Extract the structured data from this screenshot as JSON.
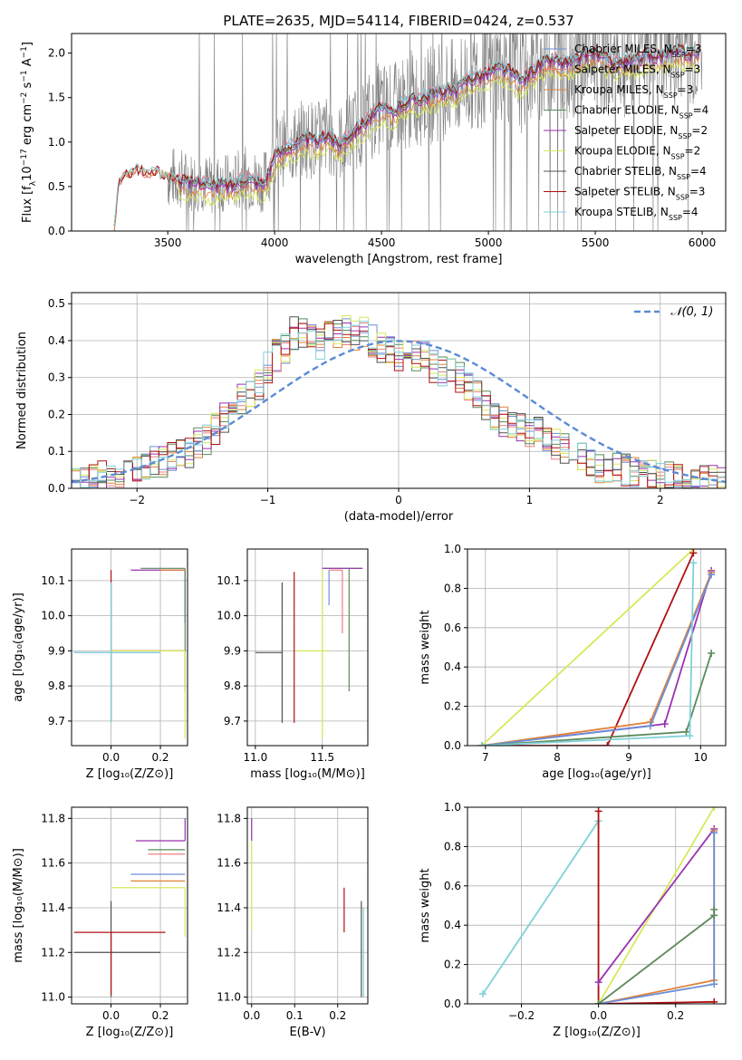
{
  "figure": {
    "title": "PLATE=2635, MJD=54114, FIBERID=0424, z=0.537"
  },
  "colors": {
    "chabrier_miles": "#6b8fd6",
    "salpeter_miles": "#ef7f80",
    "kroupa_miles": "#e0823a",
    "chabrier_elodie": "#5a8a5a",
    "salpeter_elodie": "#9b30b0",
    "kroupa_elodie": "#d8e85a",
    "chabrier_stelib": "#505050",
    "salpeter_stelib": "#b01010",
    "kroupa_stelib": "#7fd0d8",
    "normal_curve": "#5b8bd6",
    "data_spectrum": "#808080",
    "grid": "#b0b0b0"
  },
  "chart_data": [
    {
      "id": "spectrum",
      "type": "line",
      "title": "PLATE=2635, MJD=54114, FIBERID=0424, z=0.537",
      "xlabel": "wavelength [Angstrom, rest frame]",
      "ylabel_parts": {
        "a": "Flux [f",
        "b": "λ",
        "c": "10",
        "d": "−17",
        "e": " erg cm",
        "f": "−2",
        "g": " s",
        "h": "−1",
        "i": " A",
        "j": "−1",
        "k": "]"
      },
      "xlim": [
        3050,
        6110
      ],
      "ylim": [
        0,
        2.22
      ],
      "xticks": [
        3500,
        4000,
        4500,
        5000,
        5500,
        6000
      ],
      "yticks": [
        0.0,
        0.5,
        1.0,
        1.5,
        2.0
      ],
      "grid": false,
      "legend_position": "top-right",
      "legend": [
        {
          "label": "Chabrier MILES, N",
          "sub": "SSP",
          "tail": "=3",
          "color_key": "chabrier_miles"
        },
        {
          "label": "Salpeter MILES, N",
          "sub": "SSP",
          "tail": "=3",
          "color_key": "salpeter_miles"
        },
        {
          "label": "Kroupa MILES, N",
          "sub": "SSP",
          "tail": "=3",
          "color_key": "kroupa_miles"
        },
        {
          "label": "Chabrier ELODIE, N",
          "sub": "SSP",
          "tail": "=4",
          "color_key": "chabrier_elodie"
        },
        {
          "label": "Salpeter ELODIE, N",
          "sub": "SSP",
          "tail": "=2",
          "color_key": "salpeter_elodie"
        },
        {
          "label": "Kroupa ELODIE, N",
          "sub": "SSP",
          "tail": "=2",
          "color_key": "kroupa_elodie"
        },
        {
          "label": "Chabrier STELIB, N",
          "sub": "SSP",
          "tail": "=4",
          "color_key": "chabrier_stelib"
        },
        {
          "label": "Salpeter STELIB, N",
          "sub": "SSP",
          "tail": "=3",
          "color_key": "salpeter_stelib"
        },
        {
          "label": "Kroupa STELIB, N",
          "sub": "SSP",
          "tail": "=4",
          "color_key": "kroupa_stelib"
        }
      ],
      "model_continuum": {
        "x": [
          3250,
          3270,
          3300,
          3350,
          3400,
          3450,
          3500,
          3550,
          3600,
          3650,
          3700,
          3750,
          3800,
          3850,
          3900,
          3950,
          4000,
          4050,
          4100,
          4150,
          4200,
          4250,
          4300,
          4350,
          4400,
          4450,
          4500,
          4550,
          4600,
          4650,
          4700,
          4750,
          4800,
          4850,
          4900,
          4950,
          5000,
          5050,
          5100,
          5150,
          5200,
          5250,
          5300,
          5350,
          5400,
          5450,
          5500,
          5550,
          5600,
          5650,
          5700,
          5750,
          5800,
          5850,
          5900,
          5950,
          5990
        ],
        "y": [
          0.0,
          0.55,
          0.62,
          0.7,
          0.65,
          0.67,
          0.6,
          0.6,
          0.55,
          0.58,
          0.5,
          0.55,
          0.52,
          0.6,
          0.58,
          0.55,
          0.85,
          0.95,
          1.0,
          1.05,
          1.02,
          1.1,
          0.98,
          1.1,
          1.2,
          1.3,
          1.4,
          1.35,
          1.45,
          1.5,
          1.52,
          1.55,
          1.6,
          1.58,
          1.72,
          1.75,
          1.8,
          1.85,
          1.82,
          1.7,
          1.8,
          1.9,
          1.95,
          1.9,
          1.92,
          2.0,
          2.02,
          1.95,
          1.9,
          1.92,
          1.95,
          2.0,
          1.98,
          2.02,
          2.05,
          2.0,
          2.05
        ],
        "series_offsets": {
          "chabrier_miles": 0.0,
          "salpeter_miles": 0.02,
          "kroupa_miles": -0.12,
          "chabrier_elodie": -0.02,
          "salpeter_elodie": -0.05,
          "kroupa_elodie": -0.18,
          "chabrier_stelib": 0.01,
          "salpeter_stelib": 0.0,
          "kroupa_stelib": 0.02
        }
      },
      "data_noise": {
        "x_start": 3500,
        "x_end": 6000,
        "amplitude": 0.45
      }
    },
    {
      "id": "residuals",
      "type": "line",
      "xlabel": "(data-model)/error",
      "ylabel": "Normed distribution",
      "xlim": [
        -2.5,
        2.5
      ],
      "ylim": [
        0,
        0.53
      ],
      "xticks": [
        -2,
        -1,
        0,
        1,
        2
      ],
      "xtick_labels": [
        "−2",
        "−1",
        "0",
        "1",
        "2"
      ],
      "yticks": [
        0.0,
        0.1,
        0.2,
        0.3,
        0.4,
        0.5
      ],
      "grid": true,
      "legend_position": "top-right",
      "legend": [
        {
          "label": "𝒩(0, 1)",
          "style": "dashed",
          "color_key": "normal_curve"
        }
      ],
      "bin_edges_start": -2.5,
      "bin_width": 0.1,
      "hist_base": [
        0.02,
        0.02,
        0.03,
        0.03,
        0.03,
        0.04,
        0.05,
        0.05,
        0.06,
        0.07,
        0.07,
        0.08,
        0.09,
        0.1,
        0.12,
        0.13,
        0.16,
        0.19,
        0.21,
        0.24,
        0.26,
        0.28,
        0.33,
        0.36,
        0.38,
        0.42,
        0.42,
        0.4,
        0.39,
        0.41,
        0.42,
        0.43,
        0.41,
        0.42,
        0.4,
        0.38,
        0.37,
        0.36,
        0.38,
        0.36,
        0.36,
        0.33,
        0.32,
        0.33,
        0.3,
        0.27,
        0.26,
        0.23,
        0.2,
        0.18,
        0.18,
        0.17,
        0.15,
        0.15,
        0.14,
        0.12,
        0.11,
        0.1,
        0.09,
        0.07,
        0.06,
        0.06,
        0.06,
        0.05,
        0.04,
        0.04,
        0.04,
        0.03,
        0.03,
        0.03,
        0.03,
        0.02,
        0.02,
        0.02,
        0.02
      ]
    },
    {
      "id": "age_vs_Z",
      "type": "scatter",
      "xlabel": "Z [log₁₀(Z/Z⊙)]",
      "ylabel": "age  [log₁₀(age/yr)]",
      "xlim": [
        -0.16,
        0.31
      ],
      "ylim": [
        9.63,
        10.19
      ],
      "xticks": [
        0.0,
        0.2
      ],
      "yticks": [
        9.7,
        9.8,
        9.9,
        10.0,
        10.1
      ],
      "grid": true,
      "points": [
        {
          "x": 0.0,
          "y": 9.895,
          "xerr": [
            0.15,
            0.2
          ],
          "yerr": [
            0.2,
            0.2
          ],
          "color_key": "chabrier_miles"
        },
        {
          "x": 0.0,
          "y": 9.9,
          "xerr": [
            0.0,
            0.3
          ],
          "yerr": [
            0.2,
            0.23
          ],
          "color_key": "salpeter_stelib"
        },
        {
          "x": 0.0,
          "y": 9.895,
          "xerr": [
            0.15,
            0.2
          ],
          "yerr": [
            0.2,
            0.2
          ],
          "color_key": "kroupa_stelib"
        },
        {
          "x": 0.3,
          "y": 10.13,
          "xerr": [
            0.22,
            0.0
          ],
          "yerr": [
            0.15,
            0.0
          ],
          "color_key": "salpeter_elodie"
        },
        {
          "x": 0.3,
          "y": 10.135,
          "xerr": [
            0.18,
            0.0
          ],
          "yerr": [
            0.35,
            0.0
          ],
          "color_key": "chabrier_elodie"
        },
        {
          "x": 0.3,
          "y": 10.13,
          "xerr": [
            0.1,
            0.0
          ],
          "yerr": [
            0.0,
            0.0
          ],
          "color_key": "kroupa_miles"
        },
        {
          "x": 0.3,
          "y": 9.9,
          "xerr": [
            0.3,
            0.0
          ],
          "yerr": [
            0.25,
            0.0
          ],
          "color_key": "kroupa_elodie"
        }
      ]
    },
    {
      "id": "age_vs_mass",
      "type": "scatter",
      "xlabel": "mass [log₁₀(M/M⊙)]",
      "xlim": [
        10.94,
        11.84
      ],
      "ylim": [
        9.63,
        10.19
      ],
      "xticks": [
        11.0,
        11.5
      ],
      "yticks": [
        9.7,
        9.8,
        9.9,
        10.0,
        10.1
      ],
      "grid": true,
      "points": [
        {
          "x": 11.2,
          "y": 9.895,
          "xerr": [
            0.2,
            0.0
          ],
          "yerr": [
            0.2,
            0.2
          ],
          "color_key": "chabrier_stelib"
        },
        {
          "x": 11.29,
          "y": 9.895,
          "xerr": [
            0.0,
            0.0
          ],
          "yerr": [
            0.2,
            0.23
          ],
          "color_key": "salpeter_stelib"
        },
        {
          "x": 11.5,
          "y": 9.9,
          "xerr": [
            0.2,
            0.05
          ],
          "yerr": [
            0.25,
            0.23
          ],
          "color_key": "kroupa_elodie"
        },
        {
          "x": 11.7,
          "y": 10.135,
          "xerr": [
            0.2,
            0.1
          ],
          "yerr": [
            0.35,
            0.0
          ],
          "color_key": "chabrier_elodie"
        },
        {
          "x": 11.8,
          "y": 10.135,
          "xerr": [
            0.3,
            0.0
          ],
          "yerr": [
            0.0,
            0.0
          ],
          "color_key": "salpeter_elodie"
        },
        {
          "x": 11.65,
          "y": 10.13,
          "xerr": [
            0.1,
            0.0
          ],
          "yerr": [
            0.18,
            0.0
          ],
          "color_key": "salpeter_miles"
        },
        {
          "x": 11.55,
          "y": 10.13,
          "xerr": [
            0.0,
            0.0
          ],
          "yerr": [
            0.1,
            0.0
          ],
          "color_key": "chabrier_miles"
        }
      ]
    },
    {
      "id": "mass_weight_vs_age",
      "type": "line",
      "xlabel": "age  [log₁₀(age/yr)]",
      "ylabel": "mass weight",
      "xlim": [
        6.75,
        10.35
      ],
      "ylim": [
        0,
        1.0
      ],
      "xticks": [
        7,
        8,
        9,
        10
      ],
      "yticks": [
        0.0,
        0.2,
        0.4,
        0.6,
        0.8,
        1.0
      ],
      "grid": true,
      "series": [
        {
          "color_key": "kroupa_elodie",
          "x": [
            6.95,
            9.9
          ],
          "y": [
            0.0,
            1.0
          ]
        },
        {
          "color_key": "salpeter_stelib",
          "x": [
            6.95,
            8.7,
            9.9
          ],
          "y": [
            0.0,
            0.0,
            0.98
          ]
        },
        {
          "color_key": "salpeter_elodie",
          "x": [
            6.95,
            9.5,
            10.15
          ],
          "y": [
            0.0,
            0.11,
            0.89
          ]
        },
        {
          "color_key": "kroupa_miles",
          "x": [
            6.95,
            9.3,
            10.15
          ],
          "y": [
            0.0,
            0.12,
            0.88
          ]
        },
        {
          "color_key": "chabrier_miles",
          "x": [
            6.95,
            9.3,
            10.15
          ],
          "y": [
            0.0,
            0.1,
            0.87
          ]
        },
        {
          "color_key": "chabrier_elodie",
          "x": [
            6.95,
            9.8,
            10.15
          ],
          "y": [
            0.0,
            0.07,
            0.47
          ]
        },
        {
          "color_key": "kroupa_stelib",
          "x": [
            6.95,
            9.85,
            9.9
          ],
          "y": [
            0.0,
            0.05,
            0.93
          ]
        }
      ]
    },
    {
      "id": "mass_vs_Z",
      "type": "scatter",
      "xlabel": "Z [log₁₀(Z/Z⊙)]",
      "ylabel": "mass [log₁₀(M/M⊙)]",
      "xlim": [
        -0.16,
        0.31
      ],
      "ylim": [
        10.97,
        11.85
      ],
      "xticks": [
        0.0,
        0.2
      ],
      "yticks": [
        11.0,
        11.2,
        11.4,
        11.6,
        11.8
      ],
      "grid": true,
      "points": [
        {
          "x": 0.0,
          "y": 11.2,
          "xerr": [
            0.15,
            0.2
          ],
          "yerr": [
            0.2,
            0.23
          ],
          "color_key": "chabrier_stelib"
        },
        {
          "x": 0.0,
          "y": 11.29,
          "xerr": [
            0.15,
            0.22
          ],
          "yerr": [
            0.28,
            0.0
          ],
          "color_key": "salpeter_stelib"
        },
        {
          "x": 0.3,
          "y": 11.7,
          "xerr": [
            0.2,
            0.0
          ],
          "yerr": [
            0.0,
            0.1
          ],
          "color_key": "salpeter_elodie"
        },
        {
          "x": 0.3,
          "y": 11.66,
          "xerr": [
            0.15,
            0.0
          ],
          "yerr": [
            0.0,
            0.0
          ],
          "color_key": "chabrier_elodie"
        },
        {
          "x": 0.3,
          "y": 11.64,
          "xerr": [
            0.15,
            0.0
          ],
          "yerr": [
            0.0,
            0.0
          ],
          "color_key": "salpeter_miles"
        },
        {
          "x": 0.3,
          "y": 11.55,
          "xerr": [
            0.22,
            0.0
          ],
          "yerr": [
            0.0,
            0.0
          ],
          "color_key": "chabrier_miles"
        },
        {
          "x": 0.3,
          "y": 11.52,
          "xerr": [
            0.22,
            0.0
          ],
          "yerr": [
            0.0,
            0.0
          ],
          "color_key": "kroupa_miles"
        },
        {
          "x": 0.3,
          "y": 11.49,
          "xerr": [
            0.3,
            0.0
          ],
          "yerr": [
            0.22,
            0.0
          ],
          "color_key": "kroupa_elodie"
        }
      ]
    },
    {
      "id": "mass_vs_EBV",
      "type": "scatter",
      "xlabel": "E(B-V)",
      "xlim": [
        -0.01,
        0.27
      ],
      "ylim": [
        10.97,
        11.85
      ],
      "xticks": [
        0.0,
        0.1,
        0.2
      ],
      "yticks": [
        11.0,
        11.2,
        11.4,
        11.6,
        11.8
      ],
      "grid": true,
      "points": [
        {
          "x": 0.0,
          "y": 11.5,
          "xerr": [
            0.0,
            0.0
          ],
          "yerr": [
            0.2,
            0.2
          ],
          "color_key": "kroupa_elodie"
        },
        {
          "x": 0.0,
          "y": 11.7,
          "xerr": [
            0.0,
            0.0
          ],
          "yerr": [
            0.0,
            0.1
          ],
          "color_key": "salpeter_elodie"
        },
        {
          "x": 0.215,
          "y": 11.29,
          "xerr": [
            0.0,
            0.0
          ],
          "yerr": [
            0.0,
            0.2
          ],
          "color_key": "salpeter_stelib"
        },
        {
          "x": 0.255,
          "y": 11.2,
          "xerr": [
            0.0,
            0.0
          ],
          "yerr": [
            0.2,
            0.23
          ],
          "color_key": "chabrier_stelib"
        },
        {
          "x": 0.26,
          "y": 11.2,
          "xerr": [
            0.0,
            0.0
          ],
          "yerr": [
            0.2,
            0.2
          ],
          "color_key": "kroupa_stelib"
        }
      ]
    },
    {
      "id": "mass_weight_vs_Z",
      "type": "line",
      "xlabel": "Z [log₁₀(Z/Z⊙)]",
      "ylabel": "mass weight",
      "xlim": [
        -0.34,
        0.33
      ],
      "ylim": [
        0,
        1.0
      ],
      "xticks": [
        -0.2,
        0.0,
        0.2
      ],
      "xtick_labels": [
        "−0.2",
        "0.0",
        "0.2"
      ],
      "yticks": [
        0.0,
        0.2,
        0.4,
        0.6,
        0.8,
        1.0
      ],
      "grid": true,
      "series": [
        {
          "color_key": "kroupa_stelib",
          "x": [
            -0.3,
            0.0,
            0.0
          ],
          "y": [
            0.05,
            0.93,
            0.0
          ]
        },
        {
          "color_key": "salpeter_stelib",
          "x": [
            0.0,
            0.0,
            0.3
          ],
          "y": [
            0.98,
            0.0,
            0.01
          ]
        },
        {
          "color_key": "kroupa_elodie",
          "x": [
            0.0,
            0.3
          ],
          "y": [
            0.0,
            1.0
          ]
        },
        {
          "color_key": "salpeter_elodie",
          "x": [
            0.0,
            0.3
          ],
          "y": [
            0.11,
            0.89
          ]
        },
        {
          "color_key": "kroupa_miles",
          "x": [
            0.0,
            0.3,
            0.3
          ],
          "y": [
            0.0,
            0.12,
            0.88
          ]
        },
        {
          "color_key": "chabrier_miles",
          "x": [
            0.0,
            0.3,
            0.3
          ],
          "y": [
            0.0,
            0.1,
            0.87
          ]
        },
        {
          "color_key": "chabrier_elodie",
          "x": [
            0.0,
            0.3,
            0.3
          ],
          "y": [
            0.0,
            0.45,
            0.48
          ]
        }
      ]
    }
  ]
}
